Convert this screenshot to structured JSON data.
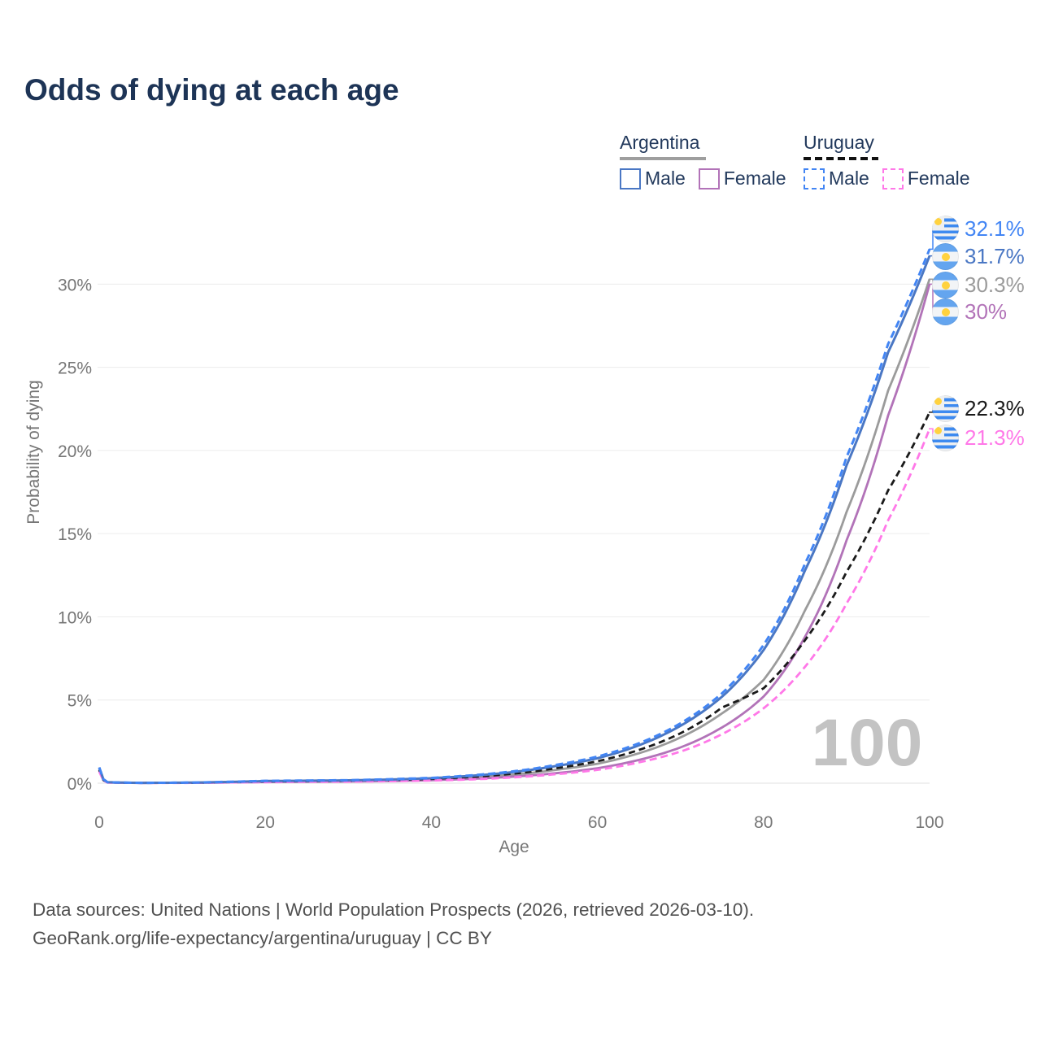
{
  "title": "Odds of dying at each age",
  "watermark": "100",
  "legend": {
    "argentina": {
      "label": "Argentina",
      "male": "Male",
      "female": "Female"
    },
    "uruguay": {
      "label": "Uruguay",
      "male": "Male",
      "female": "Female"
    }
  },
  "footer": {
    "line1": "Data sources: United Nations | World Population Prospects (2026, retrieved 2026-03-10).",
    "line2": "GeoRank.org/life-expectancy/argentina/uruguay | CC BY"
  },
  "colors": {
    "title_navy": "#1d3456",
    "legend_text": "#22395c",
    "axis_gray": "#767676",
    "gridline": "#ececec",
    "watermark_gray": "#c3c3c3",
    "argentina_male_blue": "#4a77c4",
    "argentina_female_purple": "#b273b8",
    "argentina_total_gray": "#9b9b9b",
    "uruguay_male_blue": "#4285f4",
    "uruguay_female_pink": "#ff78e8",
    "uruguay_total_black": "#1a1a1a",
    "flag_blue": "#3d8af0",
    "flag_sun_yellow": "#ffd23f"
  },
  "chart_data": {
    "type": "line",
    "title": "Odds of dying at each age",
    "xlabel": "Age",
    "ylabel": "Probability of dying",
    "xlim": [
      0,
      100
    ],
    "ylim_pct": [
      0,
      32.5
    ],
    "x_ticks": [
      0,
      20,
      40,
      60,
      80,
      100
    ],
    "y_ticks": [
      "0%",
      "5%",
      "10%",
      "15%",
      "20%",
      "25%",
      "30%"
    ],
    "grid": "horizontal-only",
    "legend_position": "top-right",
    "hover_age_indicator": "100",
    "series": [
      {
        "id": "uruguay-male",
        "name": "Uruguay Male",
        "country": "Uruguay",
        "sex": "Male",
        "line_style": "dashed",
        "color": "#4285f4",
        "width": 3,
        "dash": "9 5",
        "flag": "uruguay-flag-icon",
        "end_label": "32.1%",
        "end_value_pct": 32.1,
        "points": [
          [
            0,
            0.95
          ],
          [
            1,
            0.06
          ],
          [
            5,
            0.02
          ],
          [
            10,
            0.03
          ],
          [
            15,
            0.08
          ],
          [
            20,
            0.14
          ],
          [
            25,
            0.16
          ],
          [
            30,
            0.18
          ],
          [
            35,
            0.24
          ],
          [
            40,
            0.32
          ],
          [
            45,
            0.48
          ],
          [
            50,
            0.72
          ],
          [
            55,
            1.1
          ],
          [
            60,
            1.6
          ],
          [
            65,
            2.4
          ],
          [
            70,
            3.6
          ],
          [
            75,
            5.4
          ],
          [
            80,
            8.3
          ],
          [
            85,
            13.2
          ],
          [
            90,
            19.6
          ],
          [
            95,
            26.4
          ],
          [
            100,
            32.1
          ]
        ]
      },
      {
        "id": "argentina-male",
        "name": "Argentina Male",
        "country": "Argentina",
        "sex": "Male",
        "line_style": "solid",
        "color": "#4a77c4",
        "width": 3,
        "dash": null,
        "flag": "argentina-flag-icon",
        "end_label": "31.7%",
        "end_value_pct": 31.7,
        "points": [
          [
            0,
            0.95
          ],
          [
            1,
            0.06
          ],
          [
            5,
            0.02
          ],
          [
            10,
            0.03
          ],
          [
            15,
            0.07
          ],
          [
            20,
            0.13
          ],
          [
            25,
            0.15
          ],
          [
            30,
            0.17
          ],
          [
            35,
            0.22
          ],
          [
            40,
            0.3
          ],
          [
            45,
            0.45
          ],
          [
            50,
            0.68
          ],
          [
            55,
            1.03
          ],
          [
            60,
            1.5
          ],
          [
            65,
            2.28
          ],
          [
            70,
            3.45
          ],
          [
            75,
            5.2
          ],
          [
            80,
            8.0
          ],
          [
            85,
            12.8
          ],
          [
            90,
            19.1
          ],
          [
            95,
            25.9
          ],
          [
            100,
            31.7
          ]
        ]
      },
      {
        "id": "argentina-both-sexes",
        "name": "Argentina (both sexes)",
        "country": "Argentina",
        "sex": "Both",
        "line_style": "solid",
        "color": "#9b9b9b",
        "width": 2.8,
        "dash": null,
        "flag": "argentina-flag-icon",
        "end_label": "30.3%",
        "end_value_pct": 30.3,
        "points": [
          [
            0,
            0.85
          ],
          [
            1,
            0.05
          ],
          [
            5,
            0.02
          ],
          [
            10,
            0.02
          ],
          [
            15,
            0.05
          ],
          [
            20,
            0.1
          ],
          [
            25,
            0.12
          ],
          [
            30,
            0.13
          ],
          [
            35,
            0.17
          ],
          [
            40,
            0.23
          ],
          [
            45,
            0.34
          ],
          [
            50,
            0.52
          ],
          [
            55,
            0.8
          ],
          [
            60,
            1.17
          ],
          [
            65,
            1.8
          ],
          [
            70,
            2.75
          ],
          [
            75,
            4.2
          ],
          [
            80,
            6.2
          ],
          [
            85,
            10.4
          ],
          [
            90,
            16.3
          ],
          [
            95,
            23.6
          ],
          [
            100,
            30.3
          ]
        ]
      },
      {
        "id": "argentina-female",
        "name": "Argentina Female",
        "country": "Argentina",
        "sex": "Female",
        "line_style": "solid",
        "color": "#b273b8",
        "width": 2.8,
        "dash": null,
        "flag": "argentina-flag-icon",
        "end_label": "30%",
        "end_value_pct": 30,
        "points": [
          [
            0,
            0.75
          ],
          [
            1,
            0.04
          ],
          [
            5,
            0.015
          ],
          [
            10,
            0.02
          ],
          [
            15,
            0.04
          ],
          [
            20,
            0.07
          ],
          [
            25,
            0.09
          ],
          [
            30,
            0.1
          ],
          [
            35,
            0.13
          ],
          [
            40,
            0.18
          ],
          [
            45,
            0.26
          ],
          [
            50,
            0.4
          ],
          [
            55,
            0.6
          ],
          [
            60,
            0.9
          ],
          [
            65,
            1.4
          ],
          [
            70,
            2.15
          ],
          [
            75,
            3.35
          ],
          [
            80,
            5.2
          ],
          [
            85,
            8.8
          ],
          [
            90,
            14.6
          ],
          [
            95,
            22.1
          ],
          [
            100,
            30
          ]
        ]
      },
      {
        "id": "uruguay-both-sexes",
        "name": "Uruguay (both sexes)",
        "country": "Uruguay",
        "sex": "Both",
        "line_style": "dashed",
        "color": "#1a1a1a",
        "width": 2.8,
        "dash": "8 5",
        "flag": "uruguay-flag-icon",
        "end_label": "22.3%",
        "end_value_pct": 22.3,
        "points": [
          [
            0,
            0.8
          ],
          [
            1,
            0.05
          ],
          [
            5,
            0.02
          ],
          [
            10,
            0.02
          ],
          [
            15,
            0.06
          ],
          [
            20,
            0.11
          ],
          [
            25,
            0.13
          ],
          [
            30,
            0.15
          ],
          [
            35,
            0.19
          ],
          [
            40,
            0.26
          ],
          [
            45,
            0.38
          ],
          [
            50,
            0.58
          ],
          [
            55,
            0.9
          ],
          [
            60,
            1.32
          ],
          [
            65,
            2.0
          ],
          [
            70,
            3.0
          ],
          [
            75,
            4.55
          ],
          [
            80,
            5.7
          ],
          [
            85,
            8.6
          ],
          [
            90,
            12.7
          ],
          [
            95,
            17.6
          ],
          [
            100,
            22.3
          ]
        ]
      },
      {
        "id": "uruguay-female",
        "name": "Uruguay Female",
        "country": "Uruguay",
        "sex": "Female",
        "line_style": "dashed",
        "color": "#ff78e8",
        "width": 2.8,
        "dash": "9 5",
        "flag": "uruguay-flag-icon",
        "end_label": "21.3%",
        "end_value_pct": 21.3,
        "points": [
          [
            0,
            0.7
          ],
          [
            1,
            0.04
          ],
          [
            5,
            0.015
          ],
          [
            10,
            0.015
          ],
          [
            15,
            0.04
          ],
          [
            20,
            0.06
          ],
          [
            25,
            0.08
          ],
          [
            30,
            0.09
          ],
          [
            35,
            0.12
          ],
          [
            40,
            0.16
          ],
          [
            45,
            0.23
          ],
          [
            50,
            0.35
          ],
          [
            55,
            0.54
          ],
          [
            60,
            0.8
          ],
          [
            65,
            1.25
          ],
          [
            70,
            1.9
          ],
          [
            75,
            2.95
          ],
          [
            80,
            4.5
          ],
          [
            85,
            7.0
          ],
          [
            90,
            10.8
          ],
          [
            95,
            15.8
          ],
          [
            100,
            21.3
          ]
        ]
      }
    ]
  }
}
